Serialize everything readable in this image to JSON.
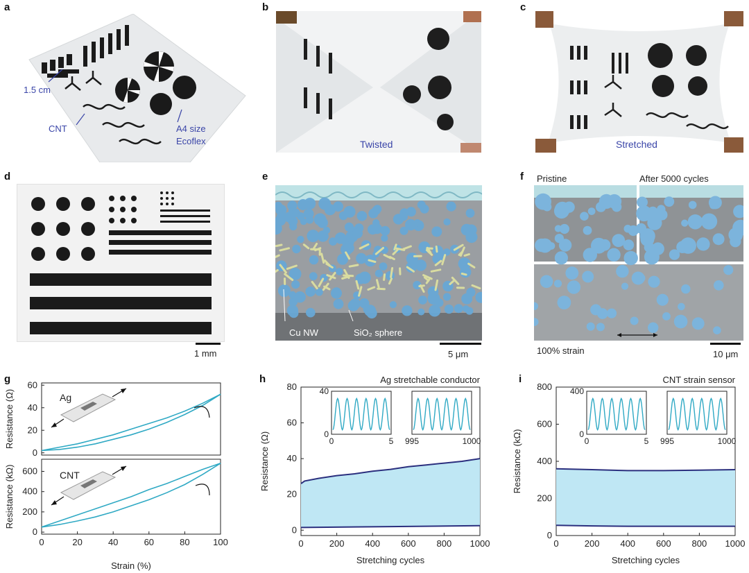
{
  "panel_letters": [
    "a",
    "b",
    "c",
    "d",
    "e",
    "f",
    "g",
    "h",
    "i"
  ],
  "panel_a": {
    "label_scale": "1.5 cm",
    "label_cnt": "CNT",
    "label_size": "A4 size",
    "label_material": "Ecoflex"
  },
  "panel_b": {
    "caption": "Twisted"
  },
  "panel_c": {
    "caption": "Stretched"
  },
  "panel_d": {
    "scalebar": "1 mm"
  },
  "panel_e": {
    "label_nw": "Cu NW",
    "label_sphere": "SiO₂ sphere",
    "scalebar": "5 μm"
  },
  "panel_f": {
    "label_pristine": "Pristine",
    "label_after": "After 5000 cycles",
    "label_strain": "100% strain",
    "scalebar": "10 μm"
  },
  "colors": {
    "cyan": "#2fa9c4",
    "navy": "#2b2f7e",
    "fill": "#bfe7f4",
    "annot": "#3a45a8"
  },
  "chart_data": [
    {
      "type": "line",
      "panel": "g",
      "xlabel": "Strain (%)",
      "ylabel": "Resistance (Ω)",
      "series_label": "Ag",
      "xlim": [
        0,
        100
      ],
      "ylim": [
        -2,
        62
      ],
      "xticks": [
        "0",
        "20",
        "40",
        "60",
        "80",
        "100"
      ],
      "yticks": [
        "0",
        "20",
        "40",
        "60"
      ],
      "loading": {
        "x": [
          0,
          10,
          20,
          30,
          40,
          50,
          60,
          70,
          80,
          90,
          100
        ],
        "y": [
          2,
          5,
          8,
          12,
          16,
          21,
          26,
          31,
          37,
          44,
          52
        ]
      },
      "unloading": {
        "x": [
          0,
          10,
          20,
          30,
          40,
          50,
          60,
          70,
          80,
          90,
          100
        ],
        "y": [
          2,
          3,
          5,
          8,
          12,
          16,
          21,
          27,
          34,
          42,
          52
        ]
      }
    },
    {
      "type": "line",
      "panel": "g",
      "xlabel": "Strain (%)",
      "ylabel": "Resistance (kΩ)",
      "series_label": "CNT",
      "xlim": [
        0,
        100
      ],
      "ylim": [
        -20,
        720
      ],
      "xticks": [
        "0",
        "20",
        "40",
        "60",
        "80",
        "100"
      ],
      "yticks": [
        "0",
        "200",
        "400",
        "600"
      ],
      "loading": {
        "x": [
          0,
          10,
          20,
          30,
          40,
          50,
          60,
          70,
          80,
          90,
          100
        ],
        "y": [
          50,
          110,
          170,
          230,
          290,
          350,
          420,
          480,
          550,
          620,
          680
        ]
      },
      "unloading": {
        "x": [
          0,
          10,
          20,
          30,
          40,
          50,
          60,
          70,
          80,
          90,
          100
        ],
        "y": [
          50,
          75,
          110,
          150,
          200,
          260,
          320,
          390,
          470,
          570,
          680
        ]
      }
    },
    {
      "type": "area",
      "panel": "h",
      "title": "Ag stretchable conductor",
      "xlabel": "Stretching cycles",
      "ylabel": "Resistance (Ω)",
      "xlim": [
        0,
        1000
      ],
      "ylim": [
        -3,
        80
      ],
      "xticks": [
        "0",
        "200",
        "400",
        "600",
        "800",
        "1000"
      ],
      "yticks": [
        "0",
        "20",
        "40",
        "60",
        "80"
      ],
      "upper": {
        "x": [
          0,
          20,
          100,
          200,
          300,
          400,
          500,
          600,
          700,
          800,
          900,
          1000
        ],
        "y": [
          26,
          27.5,
          29,
          30.5,
          31.5,
          33,
          34,
          35.5,
          36.5,
          37.5,
          38.5,
          40
        ]
      },
      "lower": {
        "x": [
          0,
          500,
          1000
        ],
        "y": [
          1.5,
          2,
          2.5
        ]
      },
      "insets": [
        {
          "xticks": [
            "0",
            "5"
          ],
          "yticks": [
            "0",
            "40"
          ],
          "xlim": [
            0,
            5
          ],
          "ylim": [
            0,
            40
          ],
          "peaks": 6
        },
        {
          "xticks": [
            "995",
            "1000"
          ],
          "xlim": [
            995,
            1000
          ],
          "ylim": [
            0,
            40
          ],
          "peaks": 6
        }
      ]
    },
    {
      "type": "area",
      "panel": "i",
      "title": "CNT strain sensor",
      "xlabel": "Stretching cycles",
      "ylabel": "Resistance (kΩ)",
      "xlim": [
        0,
        1000
      ],
      "ylim": [
        0,
        800
      ],
      "xticks": [
        "0",
        "200",
        "400",
        "600",
        "800",
        "1000"
      ],
      "yticks": [
        "0",
        "200",
        "400",
        "600",
        "800"
      ],
      "upper": {
        "x": [
          0,
          200,
          400,
          600,
          800,
          1000
        ],
        "y": [
          360,
          355,
          350,
          350,
          352,
          355
        ]
      },
      "lower": {
        "x": [
          0,
          200,
          400,
          600,
          800,
          1000
        ],
        "y": [
          55,
          52,
          50,
          50,
          50,
          50
        ]
      },
      "insets": [
        {
          "xticks": [
            "0",
            "5"
          ],
          "yticks": [
            "0",
            "400"
          ],
          "xlim": [
            0,
            5
          ],
          "ylim": [
            0,
            400
          ],
          "peaks": 6
        },
        {
          "xticks": [
            "995",
            "1000"
          ],
          "xlim": [
            995,
            1000
          ],
          "ylim": [
            0,
            400
          ],
          "peaks": 6
        }
      ]
    }
  ]
}
